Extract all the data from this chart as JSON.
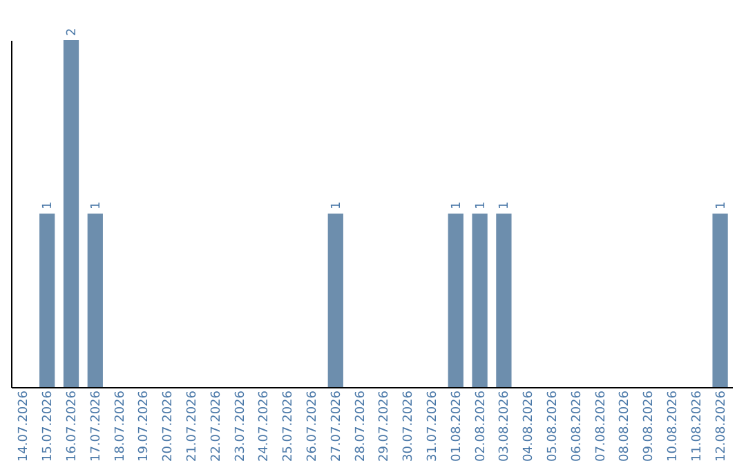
{
  "chart_data": {
    "type": "bar",
    "categories": [
      "14.07.2026",
      "15.07.2026",
      "16.07.2026",
      "17.07.2026",
      "18.07.2026",
      "19.07.2026",
      "20.07.2026",
      "21.07.2026",
      "22.07.2026",
      "23.07.2026",
      "24.07.2026",
      "25.07.2026",
      "26.07.2026",
      "27.07.2026",
      "28.07.2026",
      "29.07.2026",
      "30.07.2026",
      "31.07.2026",
      "01.08.2026",
      "02.08.2026",
      "03.08.2026",
      "04.08.2026",
      "05.08.2026",
      "06.08.2026",
      "07.08.2026",
      "08.08.2026",
      "09.08.2026",
      "10.08.2026",
      "11.08.2026",
      "12.08.2026"
    ],
    "values": [
      0,
      1,
      2,
      1,
      0,
      0,
      0,
      0,
      0,
      0,
      0,
      0,
      0,
      1,
      0,
      0,
      0,
      0,
      1,
      1,
      1,
      0,
      0,
      0,
      0,
      0,
      0,
      0,
      0,
      1
    ],
    "value_labels": [
      null,
      "1",
      "2",
      "1",
      null,
      null,
      null,
      null,
      null,
      null,
      null,
      null,
      null,
      "1",
      null,
      null,
      null,
      null,
      "1",
      "1",
      "1",
      null,
      null,
      null,
      null,
      null,
      null,
      null,
      null,
      "1"
    ],
    "color": "#6d8ead",
    "tick_labels": "x",
    "grid": false
  }
}
